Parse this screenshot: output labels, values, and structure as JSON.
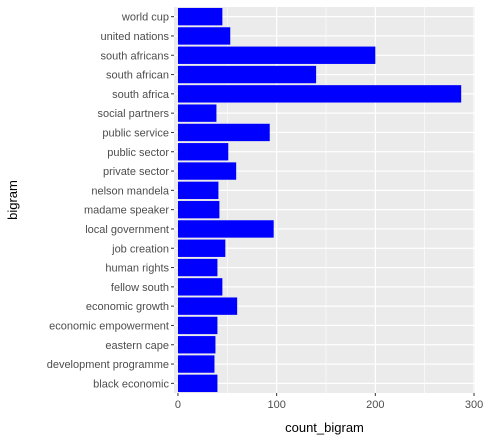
{
  "chart_data": {
    "type": "bar",
    "orientation": "horizontal",
    "xlabel": "count_bigram",
    "ylabel": "bigram",
    "xlim": [
      -4,
      301
    ],
    "x_ticks": [
      0,
      100,
      200,
      300
    ],
    "x_tick_labels": [
      "0",
      "100",
      "200",
      "300"
    ],
    "grid": true,
    "bar_color": "#0000ff",
    "panel_background": "#ebebeb",
    "grid_color": "#ffffff",
    "categories": [
      "world cup",
      "united nations",
      "south africans",
      "south african",
      "south africa",
      "social partners",
      "public service",
      "public sector",
      "private sector",
      "nelson mandela",
      "madame speaker",
      "local government",
      "job creation",
      "human rights",
      "fellow south",
      "economic growth",
      "economic empowerment",
      "eastern cape",
      "development programme",
      "black economic"
    ],
    "values": [
      45,
      53,
      200,
      140,
      287,
      39,
      93,
      51,
      59,
      41,
      42,
      97,
      48,
      40,
      45,
      60,
      40,
      38,
      37,
      40
    ]
  }
}
